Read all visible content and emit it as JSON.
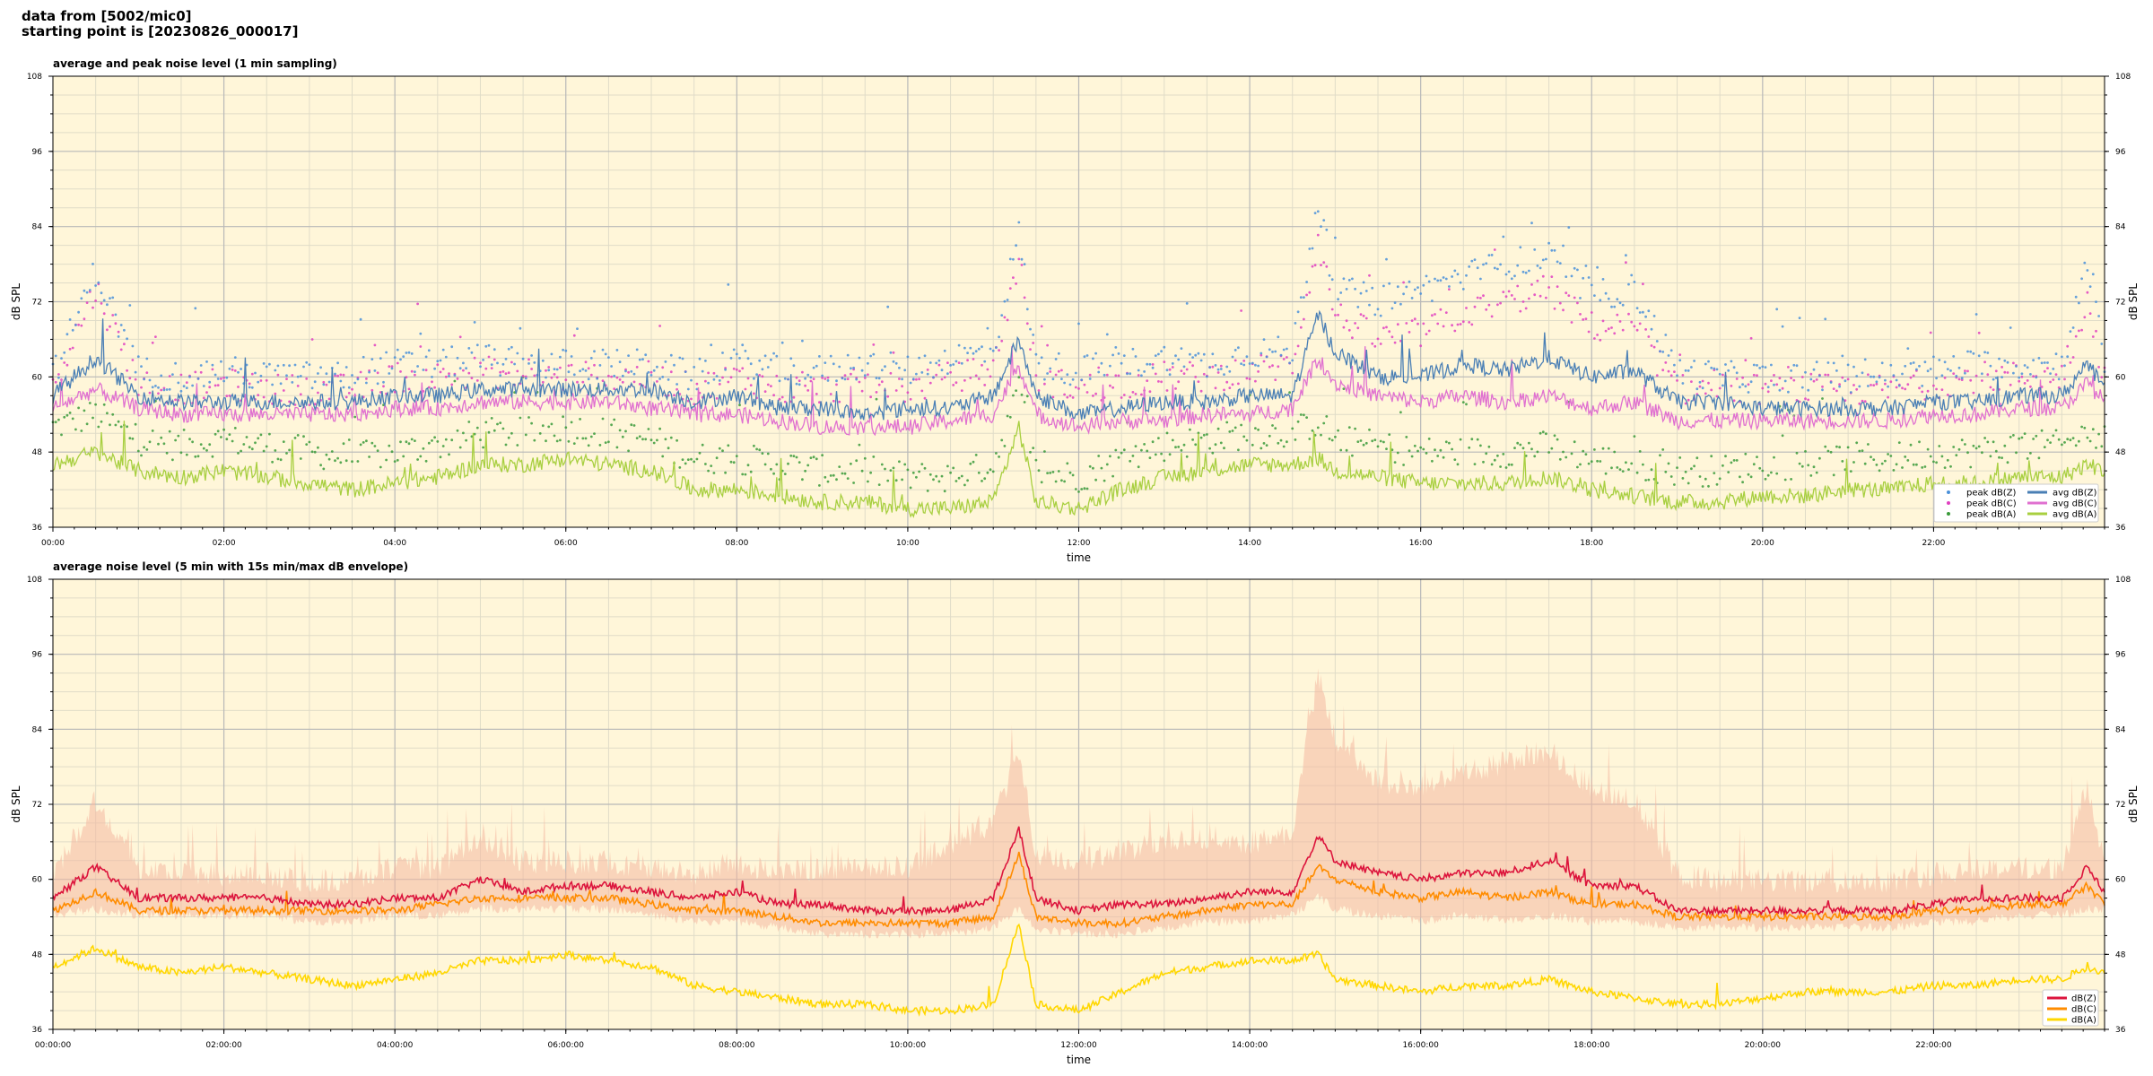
{
  "header": {
    "line1": "data from [5002/mic0]",
    "line2": "starting point is [20230826_000017]"
  },
  "colors": {
    "plot_bg": "#fff6d9",
    "grid_major": "#b8b8b8",
    "grid_minor": "#e0dcc8",
    "peak_z": "#4a90d9",
    "peak_c": "#e040c0",
    "peak_a": "#3a9a3a",
    "avg_z": "#4a7fb5",
    "avg_c": "#e070d0",
    "avg_a": "#a8cf40",
    "db_z": "#dc143c",
    "db_c": "#ff8c00",
    "db_a": "#ffd700",
    "envelope": "#f4b8a0"
  },
  "chart_data": [
    {
      "type": "line",
      "title": "average and peak noise level (1 min sampling)",
      "xlabel": "time",
      "ylabel": "dB SPL",
      "ylim": [
        36,
        108
      ],
      "yticks": [
        "36",
        "48",
        "60",
        "72",
        "84",
        "96",
        "108"
      ],
      "xlim": [
        0,
        24
      ],
      "xticks": [
        "00:00",
        "02:00",
        "04:00",
        "06:00",
        "08:00",
        "10:00",
        "12:00",
        "14:00",
        "16:00",
        "18:00",
        "20:00",
        "22:00"
      ],
      "grid": true,
      "legend": "bottom-right",
      "series": [
        {
          "name": "peak dB(Z)",
          "style": "points",
          "color_key": "peak_z"
        },
        {
          "name": "peak dB(C)",
          "style": "points",
          "color_key": "peak_c"
        },
        {
          "name": "peak dB(A)",
          "style": "points",
          "color_key": "peak_a"
        },
        {
          "name": "avg dB(Z)",
          "style": "line",
          "color_key": "avg_z"
        },
        {
          "name": "avg dB(C)",
          "style": "line",
          "color_key": "avg_c"
        },
        {
          "name": "avg dB(A)",
          "style": "line",
          "color_key": "avg_a"
        }
      ],
      "x": [
        0,
        0.5,
        1,
        1.5,
        2,
        2.5,
        3,
        3.5,
        4,
        4.5,
        5,
        5.5,
        6,
        6.5,
        7,
        7.5,
        8,
        8.5,
        9,
        9.5,
        10,
        10.5,
        11,
        11.3,
        11.5,
        12,
        12.5,
        13,
        13.5,
        14,
        14.5,
        14.8,
        15,
        15.5,
        16,
        16.5,
        17,
        17.5,
        18,
        18.5,
        19,
        19.5,
        20,
        20.5,
        21,
        21.5,
        22,
        22.5,
        23,
        23.5,
        23.8,
        24
      ],
      "avg_z": [
        57,
        63,
        57,
        56,
        56,
        56,
        56,
        56,
        57,
        57,
        58,
        58,
        58,
        58,
        58,
        56,
        57,
        55,
        55,
        54,
        55,
        55,
        57,
        66,
        57,
        54,
        55,
        56,
        56,
        57,
        57,
        70,
        64,
        60,
        60,
        62,
        61,
        63,
        60,
        61,
        56,
        56,
        55,
        55,
        55,
        55,
        56,
        56,
        57,
        57,
        62,
        58
      ],
      "avg_c": [
        55,
        58,
        55,
        54,
        54,
        54,
        54,
        54,
        55,
        55,
        56,
        56,
        56,
        56,
        55,
        54,
        54,
        53,
        52,
        52,
        52,
        53,
        54,
        62,
        54,
        52,
        53,
        53,
        54,
        54,
        55,
        63,
        59,
        57,
        56,
        57,
        56,
        57,
        55,
        56,
        53,
        53,
        53,
        53,
        53,
        53,
        54,
        54,
        55,
        55,
        59,
        56
      ],
      "avg_a": [
        46,
        48,
        45,
        44,
        45,
        44,
        43,
        42,
        43,
        44,
        46,
        46,
        47,
        46,
        45,
        42,
        42,
        41,
        40,
        40,
        39,
        39,
        40,
        52,
        40,
        39,
        42,
        44,
        45,
        46,
        46,
        47,
        45,
        44,
        43,
        43,
        43,
        44,
        42,
        41,
        40,
        40,
        41,
        41,
        42,
        42,
        43,
        43,
        44,
        44,
        46,
        45
      ],
      "peak_z": [
        60,
        77,
        61,
        60,
        61,
        60,
        60,
        60,
        62,
        62,
        63,
        62,
        62,
        62,
        62,
        60,
        63,
        61,
        61,
        62,
        61,
        63,
        64,
        83,
        62,
        61,
        62,
        63,
        62,
        64,
        64,
        88,
        74,
        72,
        74,
        76,
        78,
        79,
        73,
        74,
        61,
        60,
        60,
        60,
        60,
        60,
        61,
        62,
        62,
        62,
        78,
        62
      ],
      "peak_c": [
        59,
        74,
        59,
        58,
        59,
        58,
        58,
        58,
        60,
        60,
        61,
        60,
        60,
        60,
        60,
        58,
        60,
        58,
        58,
        59,
        58,
        60,
        61,
        79,
        60,
        58,
        59,
        60,
        60,
        61,
        62,
        82,
        70,
        66,
        67,
        70,
        72,
        74,
        68,
        68,
        58,
        58,
        58,
        58,
        58,
        58,
        59,
        60,
        60,
        60,
        72,
        60
      ],
      "peak_a": [
        52,
        54,
        50,
        49,
        50,
        49,
        48,
        47,
        48,
        49,
        51,
        51,
        52,
        51,
        50,
        47,
        47,
        46,
        45,
        45,
        44,
        44,
        46,
        58,
        45,
        44,
        47,
        49,
        50,
        51,
        51,
        53,
        50,
        49,
        48,
        48,
        48,
        49,
        47,
        46,
        45,
        45,
        46,
        46,
        47,
        47,
        48,
        48,
        49,
        49,
        51,
        50
      ]
    },
    {
      "type": "line",
      "title": "average noise level (5 min with 15s min/max dB envelope)",
      "xlabel": "time",
      "ylabel": "dB SPL",
      "ylim": [
        36,
        108
      ],
      "yticks": [
        "36",
        "48",
        "60",
        "72",
        "84",
        "96",
        "108"
      ],
      "xlim": [
        0,
        24
      ],
      "xticks": [
        "00:00:00",
        "02:00:00",
        "04:00:00",
        "06:00:00",
        "08:00:00",
        "10:00:00",
        "12:00:00",
        "14:00:00",
        "16:00:00",
        "18:00:00",
        "20:00:00",
        "22:00:00"
      ],
      "grid": true,
      "legend": "bottom-right",
      "series": [
        {
          "name": "dB(Z)",
          "style": "line",
          "color_key": "db_z"
        },
        {
          "name": "dB(C)",
          "style": "line",
          "color_key": "db_c"
        },
        {
          "name": "dB(A)",
          "style": "line",
          "color_key": "db_a"
        }
      ],
      "x": [
        0,
        0.5,
        1,
        1.5,
        2,
        2.5,
        3,
        3.5,
        4,
        4.5,
        5,
        5.5,
        6,
        6.5,
        7,
        7.5,
        8,
        8.5,
        9,
        9.5,
        10,
        10.5,
        11,
        11.3,
        11.5,
        12,
        12.5,
        13,
        13.5,
        14,
        14.5,
        14.8,
        15,
        15.5,
        16,
        16.5,
        17,
        17.5,
        18,
        18.5,
        19,
        19.5,
        20,
        20.5,
        21,
        21.5,
        22,
        22.5,
        23,
        23.5,
        23.8,
        24
      ],
      "db_z": [
        57,
        62,
        57,
        57,
        57,
        57,
        56,
        56,
        57,
        57,
        60,
        58,
        59,
        59,
        58,
        57,
        58,
        56,
        56,
        55,
        55,
        55,
        57,
        68,
        57,
        55,
        56,
        56,
        57,
        58,
        58,
        67,
        63,
        61,
        60,
        61,
        61,
        63,
        59,
        59,
        55,
        55,
        55,
        55,
        55,
        55,
        56,
        57,
        57,
        57,
        62,
        58
      ],
      "db_c": [
        55,
        58,
        55,
        55,
        55,
        55,
        55,
        55,
        55,
        56,
        57,
        57,
        57,
        57,
        56,
        55,
        55,
        54,
        53,
        53,
        53,
        53,
        54,
        64,
        54,
        53,
        53,
        54,
        55,
        56,
        56,
        62,
        60,
        58,
        57,
        58,
        57,
        58,
        56,
        56,
        54,
        54,
        54,
        54,
        54,
        54,
        55,
        55,
        56,
        56,
        59,
        56
      ],
      "db_a": [
        46,
        49,
        46,
        45,
        46,
        45,
        44,
        43,
        44,
        45,
        47,
        47,
        48,
        47,
        46,
        43,
        42,
        41,
        40,
        40,
        39,
        39,
        40,
        53,
        40,
        39,
        42,
        45,
        46,
        47,
        47,
        48,
        44,
        43,
        42,
        43,
        43,
        44,
        42,
        41,
        40,
        40,
        41,
        42,
        42,
        42,
        43,
        43,
        44,
        44,
        46,
        45
      ],
      "env_max": [
        60,
        72,
        61,
        60,
        60,
        60,
        59,
        59,
        61,
        61,
        66,
        62,
        62,
        62,
        61,
        60,
        62,
        60,
        61,
        61,
        61,
        65,
        68,
        80,
        63,
        62,
        64,
        65,
        66,
        65,
        67,
        92,
        82,
        75,
        74,
        76,
        78,
        80,
        74,
        72,
        60,
        59,
        59,
        59,
        59,
        59,
        60,
        61,
        61,
        61,
        74,
        62
      ],
      "env_min": [
        55,
        56,
        55,
        55,
        55,
        55,
        54,
        54,
        55,
        55,
        56,
        56,
        56,
        56,
        55,
        54,
        54,
        53,
        52,
        52,
        52,
        52,
        53,
        56,
        53,
        52,
        52,
        53,
        54,
        54,
        55,
        58,
        56,
        55,
        54,
        55,
        54,
        55,
        54,
        54,
        53,
        53,
        53,
        53,
        53,
        53,
        54,
        54,
        55,
        55,
        56,
        56
      ]
    }
  ]
}
